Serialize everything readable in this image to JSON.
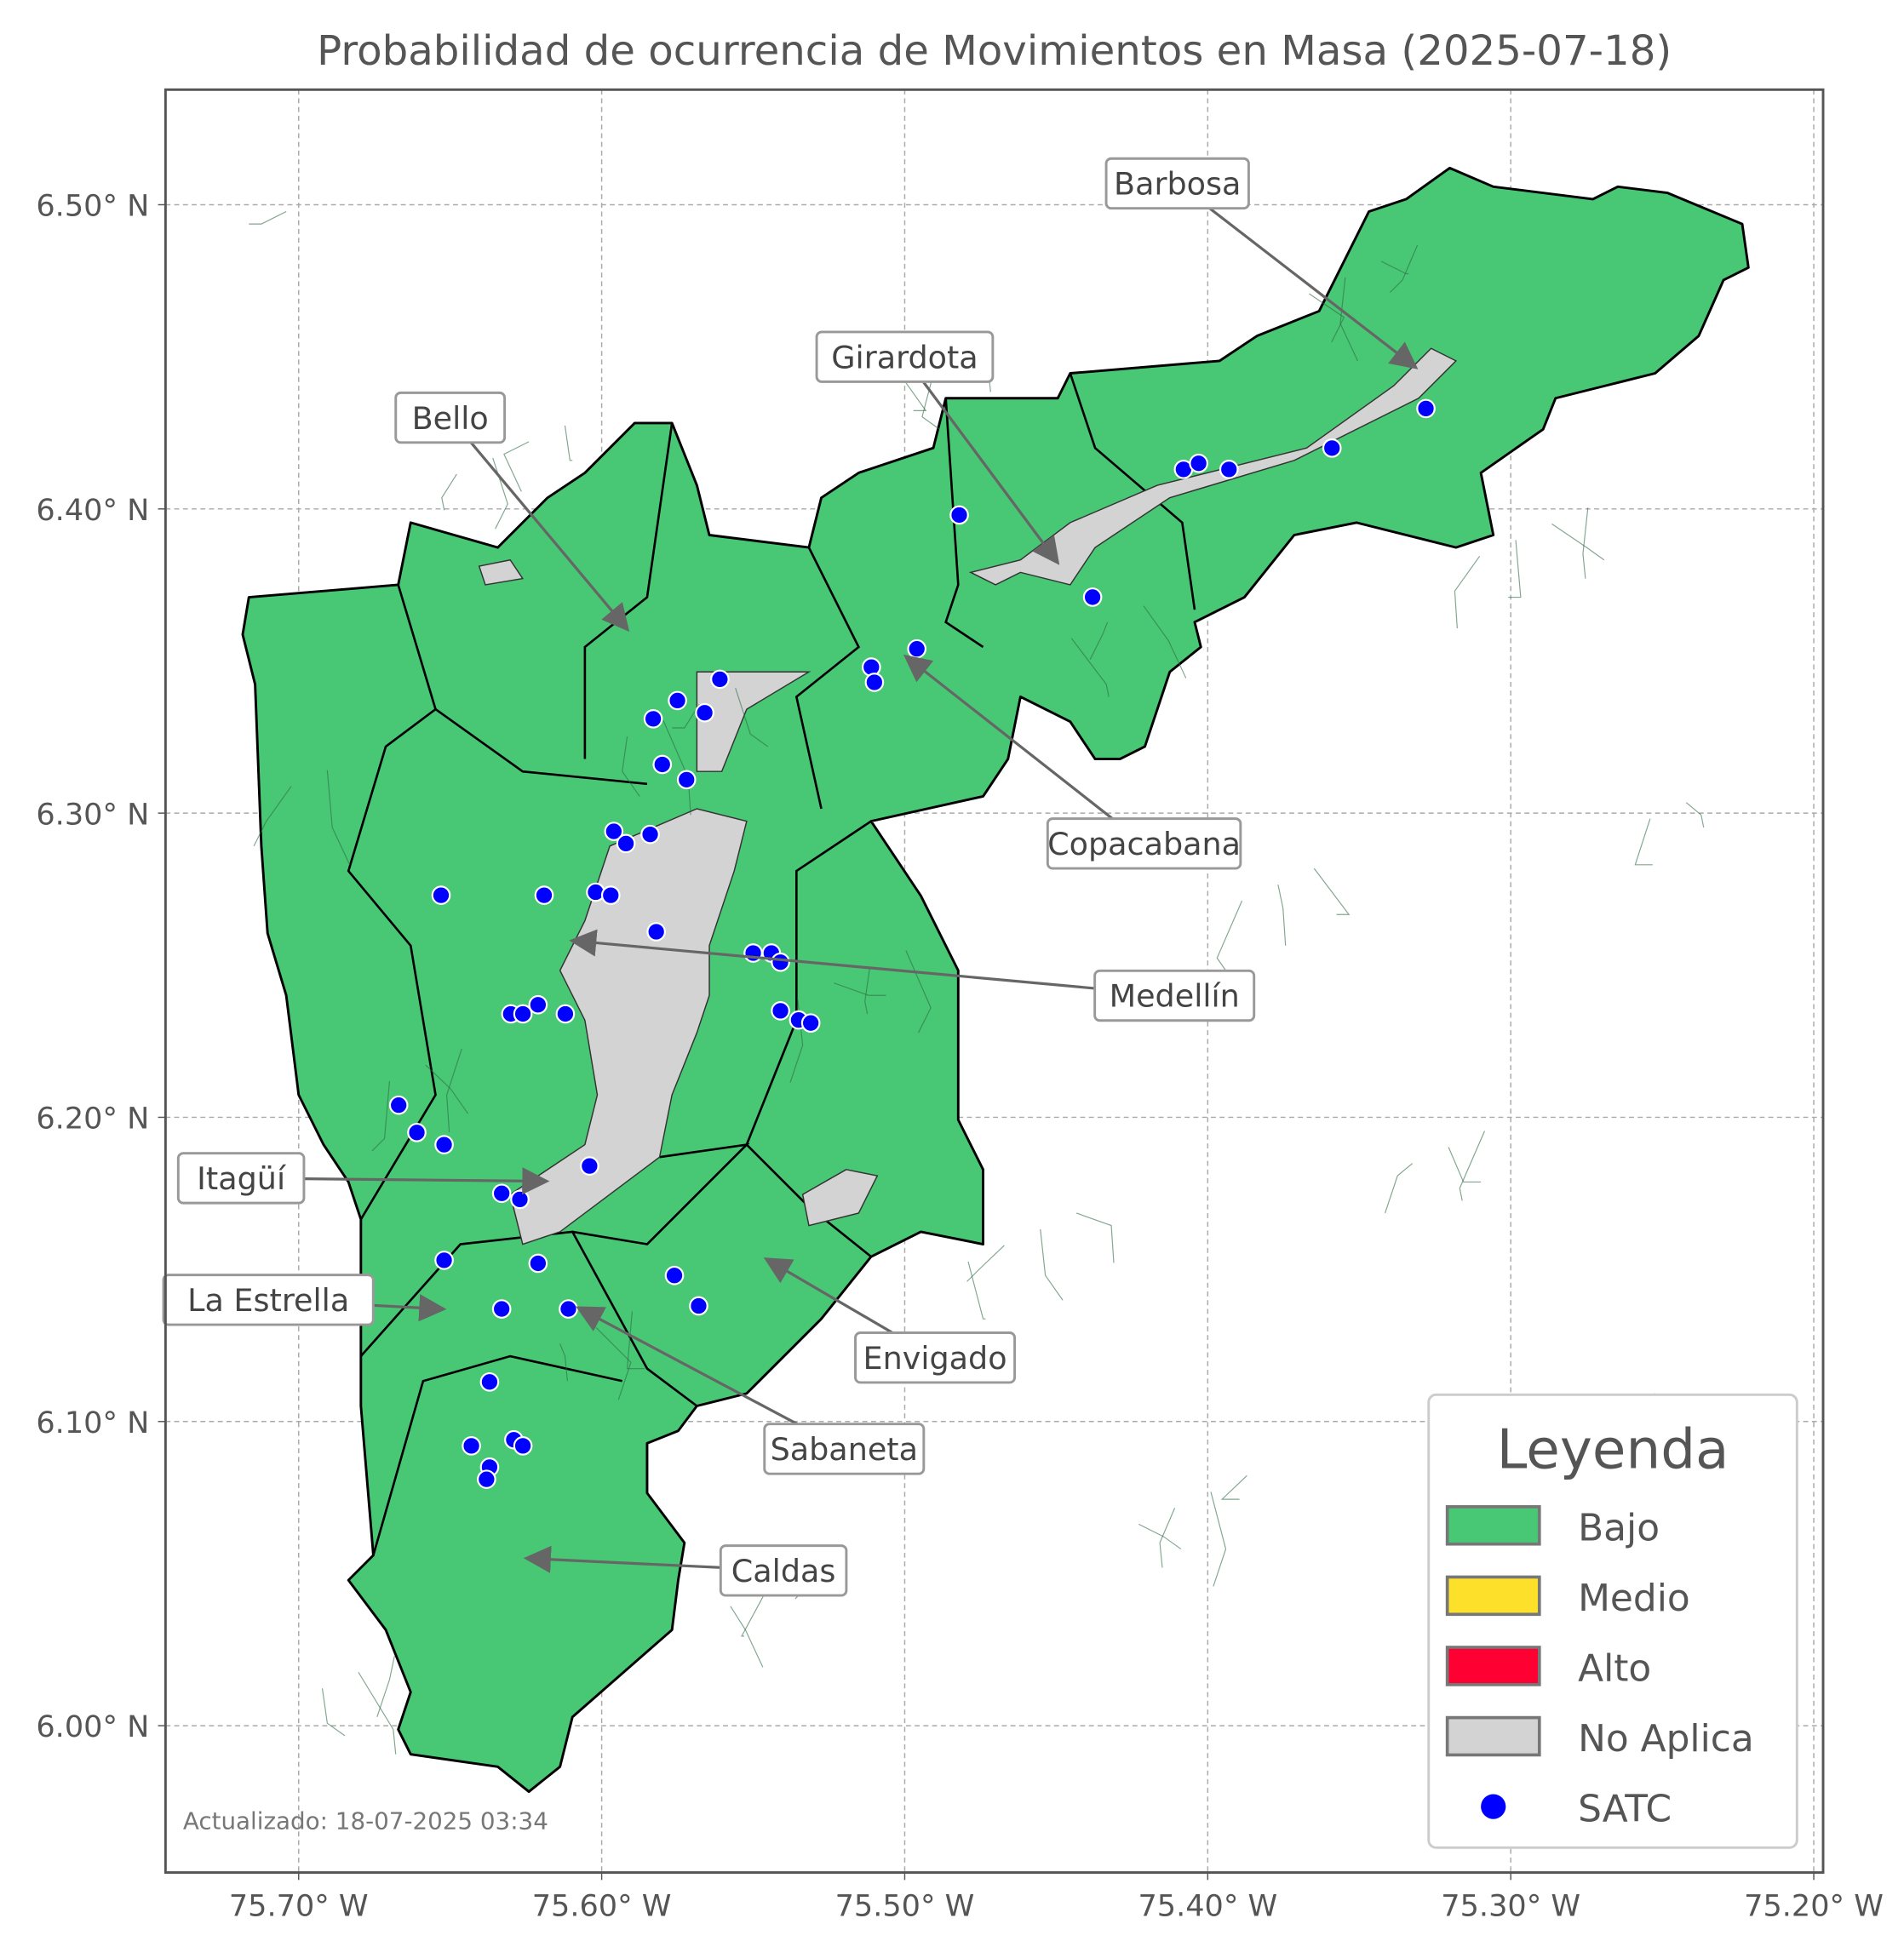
{
  "chart_data": {
    "type": "map",
    "title": "Probabilidad de ocurrencia de Movimientos en Masa (2025-07-18)",
    "xlim": [
      -75.744,
      -75.196
    ],
    "ylim": [
      5.956,
      6.535
    ],
    "grid": true,
    "x_ticks": [
      {
        "value": -75.7,
        "label": "75.70° W"
      },
      {
        "value": -75.6,
        "label": "75.60° W"
      },
      {
        "value": -75.5,
        "label": "75.50° W"
      },
      {
        "value": -75.4,
        "label": "75.40° W"
      },
      {
        "value": -75.3,
        "label": "75.30° W"
      },
      {
        "value": -75.2,
        "label": "75.20° W"
      }
    ],
    "y_ticks": [
      {
        "value": 6.0,
        "label": "6.00° N"
      },
      {
        "value": 6.1,
        "label": "6.10° N"
      },
      {
        "value": 6.2,
        "label": "6.20° N"
      },
      {
        "value": 6.3,
        "label": "6.30° N"
      },
      {
        "value": 6.4,
        "label": "6.40° N"
      },
      {
        "value": 6.5,
        "label": "6.50° N"
      }
    ],
    "legend": {
      "title": "Leyenda",
      "placement": "bottom-right",
      "items": [
        {
          "label": "Bajo",
          "color": "#48c774",
          "kind": "patch"
        },
        {
          "label": "Medio",
          "color": "#fce02a",
          "kind": "patch"
        },
        {
          "label": "Alto",
          "color": "#ff0033",
          "kind": "patch"
        },
        {
          "label": "No Aplica",
          "color": "#d3d3d3",
          "kind": "patch"
        },
        {
          "label": "SATC",
          "color": "#0000ff",
          "kind": "point"
        }
      ]
    },
    "region_class": "Bajo",
    "urban_class": "No Aplica",
    "annotations": [
      {
        "label": "Barbosa",
        "label_at": [
          -75.41,
          6.507
        ],
        "target": [
          -75.332,
          6.447
        ]
      },
      {
        "label": "Girardota",
        "label_at": [
          -75.5,
          6.45
        ],
        "target": [
          -75.45,
          6.383
        ]
      },
      {
        "label": "Bello",
        "label_at": [
          -75.65,
          6.43
        ],
        "target": [
          -75.592,
          6.361
        ]
      },
      {
        "label": "Copacabana",
        "label_at": [
          -75.421,
          6.29
        ],
        "target": [
          -75.499,
          6.351
        ]
      },
      {
        "label": "Medellín",
        "label_at": [
          -75.411,
          6.24
        ],
        "target": [
          -75.609,
          6.258
        ]
      },
      {
        "label": "Itagüí",
        "label_at": [
          -75.719,
          6.18
        ],
        "target": [
          -75.619,
          6.179
        ]
      },
      {
        "label": "La Estrella",
        "label_at": [
          -75.71,
          6.14
        ],
        "target": [
          -75.653,
          6.137
        ]
      },
      {
        "label": "Envigado",
        "label_at": [
          -75.49,
          6.121
        ],
        "target": [
          -75.545,
          6.153
        ]
      },
      {
        "label": "Sabaneta",
        "label_at": [
          -75.52,
          6.091
        ],
        "target": [
          -75.607,
          6.137
        ]
      },
      {
        "label": "Caldas",
        "label_at": [
          -75.54,
          6.051
        ],
        "target": [
          -75.624,
          6.055
        ]
      }
    ],
    "satc_points": [
      [
        -75.328,
        6.433
      ],
      [
        -75.359,
        6.42
      ],
      [
        -75.408,
        6.413
      ],
      [
        -75.403,
        6.415
      ],
      [
        -75.393,
        6.413
      ],
      [
        -75.482,
        6.398
      ],
      [
        -75.438,
        6.371
      ],
      [
        -75.496,
        6.354
      ],
      [
        -75.511,
        6.348
      ],
      [
        -75.51,
        6.343
      ],
      [
        -75.561,
        6.344
      ],
      [
        -75.575,
        6.337
      ],
      [
        -75.566,
        6.333
      ],
      [
        -75.583,
        6.331
      ],
      [
        -75.58,
        6.316
      ],
      [
        -75.572,
        6.311
      ],
      [
        -75.596,
        6.294
      ],
      [
        -75.592,
        6.29
      ],
      [
        -75.584,
        6.293
      ],
      [
        -75.653,
        6.273
      ],
      [
        -75.619,
        6.273
      ],
      [
        -75.602,
        6.274
      ],
      [
        -75.597,
        6.273
      ],
      [
        -75.582,
        6.261
      ],
      [
        -75.55,
        6.254
      ],
      [
        -75.544,
        6.254
      ],
      [
        -75.541,
        6.251
      ],
      [
        -75.541,
        6.235
      ],
      [
        -75.535,
        6.232
      ],
      [
        -75.531,
        6.231
      ],
      [
        -75.621,
        6.237
      ],
      [
        -75.612,
        6.234
      ],
      [
        -75.63,
        6.234
      ],
      [
        -75.626,
        6.234
      ],
      [
        -75.667,
        6.204
      ],
      [
        -75.661,
        6.195
      ],
      [
        -75.652,
        6.191
      ],
      [
        -75.604,
        6.184
      ],
      [
        -75.633,
        6.175
      ],
      [
        -75.627,
        6.173
      ],
      [
        -75.652,
        6.153
      ],
      [
        -75.621,
        6.152
      ],
      [
        -75.576,
        6.148
      ],
      [
        -75.568,
        6.138
      ],
      [
        -75.611,
        6.137
      ],
      [
        -75.633,
        6.137
      ],
      [
        -75.637,
        6.113
      ],
      [
        -75.643,
        6.092
      ],
      [
        -75.629,
        6.094
      ],
      [
        -75.626,
        6.092
      ],
      [
        -75.637,
        6.085
      ],
      [
        -75.638,
        6.081
      ]
    ],
    "footnote": "Actualizado: 18-07-2025 03:34"
  }
}
